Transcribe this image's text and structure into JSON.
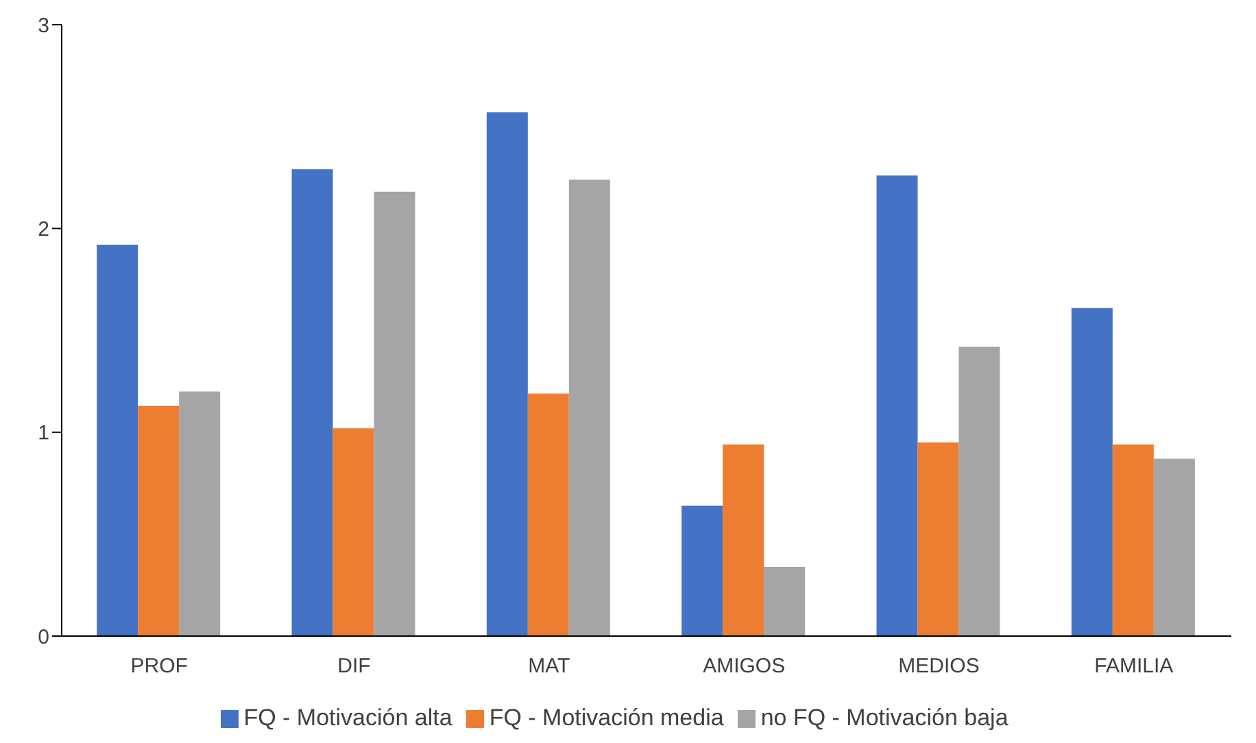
{
  "chart_data": {
    "type": "bar",
    "categories": [
      "PROF",
      "DIF",
      "MAT",
      "AMIGOS",
      "MEDIOS",
      "FAMILIA"
    ],
    "series": [
      {
        "name": "FQ - Motivación alta",
        "color": "#4472c4",
        "values": [
          1.92,
          2.29,
          2.57,
          0.64,
          2.26,
          1.61
        ]
      },
      {
        "name": "FQ - Motivación media",
        "color": "#ed7d31",
        "values": [
          1.13,
          1.02,
          1.19,
          0.94,
          0.95,
          0.94
        ]
      },
      {
        "name": "no FQ - Motivación baja",
        "color": "#a5a5a5",
        "values": [
          1.2,
          2.18,
          2.24,
          0.34,
          1.42,
          0.87
        ]
      }
    ],
    "ylim": [
      0,
      3
    ],
    "yticks": [
      0,
      1,
      2,
      3
    ],
    "grid": false,
    "legend": "bottom"
  }
}
